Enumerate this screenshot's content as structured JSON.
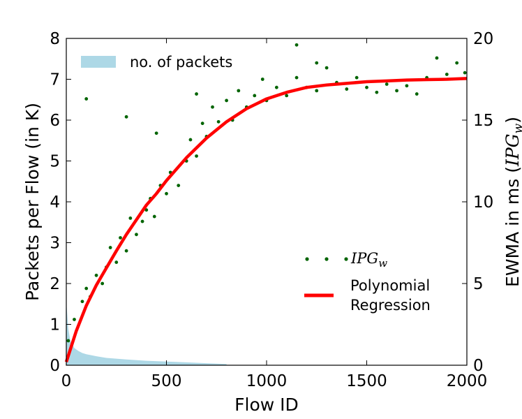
{
  "chart_data": {
    "type": "scatter",
    "xlabel": "Flow ID",
    "ylabel_left": "Packets per Flow (in K)",
    "ylabel_right_prefix": "EWMA in ms (",
    "ylabel_right_math": "IPG",
    "ylabel_right_math_sub": "w",
    "ylabel_right_suffix": ")",
    "xlim": [
      0,
      2000
    ],
    "ylim_left": [
      0,
      8
    ],
    "ylim_right": [
      0,
      20
    ],
    "x_ticks": [
      0,
      500,
      1000,
      1500,
      2000
    ],
    "y_left_ticks": [
      0,
      1,
      2,
      3,
      4,
      5,
      6,
      7,
      8
    ],
    "y_right_ticks": [
      0,
      5,
      10,
      15,
      20
    ],
    "grid": false,
    "legend_top": {
      "placement": "top-left",
      "entries": [
        {
          "label": "no. of packets",
          "color": "#add8e6"
        }
      ]
    },
    "legend_bottom": {
      "placement": "lower-right",
      "scatter_label_math": "IPG",
      "scatter_label_sub": "w",
      "line_label_1": "Polynomial",
      "line_label_2": "Regression"
    },
    "series": [
      {
        "kind": "area",
        "axis": "left",
        "color": "#add8e6",
        "x": [
          0,
          10,
          20,
          40,
          60,
          80,
          100,
          150,
          200,
          300,
          400,
          500,
          600,
          700,
          800
        ],
        "values": [
          1.55,
          0.9,
          0.6,
          0.42,
          0.35,
          0.3,
          0.27,
          0.22,
          0.18,
          0.14,
          0.11,
          0.09,
          0.07,
          0.05,
          0.03
        ]
      },
      {
        "kind": "scatter",
        "axis": "right",
        "color": "#006400",
        "x": [
          10,
          40,
          80,
          100,
          120,
          150,
          180,
          200,
          220,
          250,
          270,
          300,
          320,
          350,
          380,
          400,
          420,
          440,
          470,
          500,
          520,
          560,
          600,
          620,
          650,
          680,
          700,
          730,
          760,
          800,
          830,
          860,
          900,
          940,
          980,
          1000,
          1050,
          1100,
          1150,
          1200,
          1250,
          1300,
          1350,
          1400,
          1450,
          1500,
          1550,
          1600,
          1650,
          1700,
          1750,
          1800,
          1850,
          1900,
          1950,
          1990,
          100,
          300,
          450,
          650,
          1150,
          1250
        ],
        "values": [
          1.5,
          2.8,
          3.9,
          4.7,
          4.2,
          5.5,
          5.0,
          6.0,
          7.2,
          6.3,
          7.8,
          7.0,
          9.0,
          8.0,
          8.8,
          9.5,
          10.2,
          9.1,
          11.0,
          10.5,
          11.8,
          11.0,
          12.5,
          13.8,
          12.8,
          14.8,
          14.0,
          15.8,
          14.9,
          16.2,
          15.0,
          16.8,
          15.8,
          16.5,
          17.5,
          16.2,
          17.0,
          16.5,
          17.6,
          17.0,
          16.8,
          18.2,
          17.3,
          16.9,
          17.6,
          17.0,
          16.7,
          17.2,
          16.8,
          17.1,
          16.6,
          17.6,
          18.8,
          17.8,
          18.5,
          17.9,
          16.3,
          15.2,
          14.2,
          16.6,
          19.6,
          18.5
        ]
      },
      {
        "kind": "line",
        "axis": "right",
        "color": "#ff0000",
        "x": [
          0,
          50,
          100,
          150,
          200,
          250,
          300,
          350,
          400,
          450,
          500,
          550,
          600,
          650,
          700,
          750,
          800,
          850,
          900,
          950,
          1000,
          1100,
          1200,
          1300,
          1400,
          1500,
          1600,
          1700,
          1800,
          1900,
          2000
        ],
        "values": [
          0.2,
          2.1,
          3.65,
          4.9,
          5.95,
          7.0,
          8.0,
          8.9,
          9.8,
          10.5,
          11.3,
          12.0,
          12.7,
          13.3,
          13.9,
          14.4,
          14.9,
          15.3,
          15.7,
          16.0,
          16.3,
          16.7,
          17.0,
          17.15,
          17.25,
          17.35,
          17.4,
          17.45,
          17.48,
          17.5,
          17.55
        ]
      }
    ]
  }
}
